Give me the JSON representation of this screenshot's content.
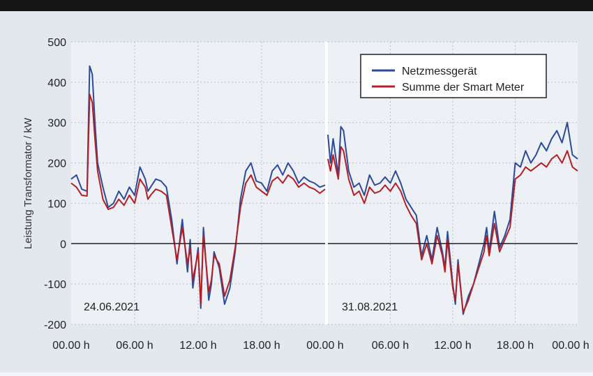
{
  "colors": {
    "background": "#e3e8ef",
    "plot_background": "#edf0f5",
    "zero_line": "#222222",
    "grid": "#b9c0c9",
    "netz": "#2b4a9a",
    "smart": "#b51f24"
  },
  "chart_data": [
    {
      "type": "line",
      "panel_label": "24.06.2021",
      "ylabel": "Leistung Transformator / kW",
      "ylim": [
        -200,
        500
      ],
      "yticks": [
        "500",
        "400",
        "300",
        "200",
        "100",
        "0",
        "-100",
        "-200"
      ],
      "xticks": [
        "00.00 h",
        "06.00 h",
        "12.00 h",
        "18.00 h",
        "00.00 h"
      ],
      "x_unit": "h",
      "xlim": [
        0,
        24
      ],
      "series": [
        {
          "name": "Netzmessgerät",
          "x": [
            0,
            0.5,
            1,
            1.5,
            1.75,
            2,
            2.25,
            2.5,
            3,
            3.5,
            4,
            4.5,
            5,
            5.5,
            6,
            6.5,
            7,
            7.25,
            7.5,
            8,
            8.5,
            9,
            9.5,
            10,
            10.5,
            11,
            11.25,
            11.5,
            12,
            12.25,
            12.5,
            13,
            13.25,
            13.5,
            14,
            14.5,
            15,
            15.5,
            16,
            16.5,
            17,
            17.5,
            18,
            18.5,
            19,
            19.5,
            20,
            20.5,
            21,
            21.5,
            22,
            22.5,
            23,
            23.5,
            24
          ],
          "y": [
            160,
            170,
            135,
            130,
            440,
            420,
            300,
            200,
            140,
            90,
            100,
            130,
            110,
            140,
            120,
            190,
            160,
            130,
            140,
            160,
            155,
            140,
            60,
            -50,
            60,
            -70,
            10,
            -110,
            -10,
            -160,
            40,
            -140,
            -100,
            -20,
            -60,
            -150,
            -110,
            -20,
            110,
            180,
            200,
            155,
            150,
            130,
            180,
            195,
            170,
            200,
            180,
            150,
            165,
            155,
            150,
            140,
            145
          ]
        },
        {
          "name": "Summe der Smart Meter",
          "x": [
            0,
            0.5,
            1,
            1.5,
            1.75,
            2,
            2.25,
            2.5,
            3,
            3.5,
            4,
            4.5,
            5,
            5.5,
            6,
            6.5,
            7,
            7.25,
            7.5,
            8,
            8.5,
            9,
            9.5,
            10,
            10.5,
            11,
            11.25,
            11.5,
            12,
            12.25,
            12.5,
            13,
            13.25,
            13.5,
            14,
            14.5,
            15,
            15.5,
            16,
            16.5,
            17,
            17.5,
            18,
            18.5,
            19,
            19.5,
            20,
            20.5,
            21,
            21.5,
            22,
            22.5,
            23,
            23.5,
            24
          ],
          "y": [
            150,
            140,
            120,
            118,
            370,
            350,
            260,
            180,
            110,
            85,
            90,
            110,
            95,
            120,
            100,
            160,
            140,
            110,
            120,
            135,
            130,
            120,
            40,
            -40,
            40,
            -50,
            -10,
            -90,
            -20,
            -150,
            20,
            -120,
            -90,
            -30,
            -50,
            -130,
            -90,
            -10,
            90,
            150,
            170,
            140,
            130,
            120,
            155,
            165,
            150,
            170,
            160,
            140,
            150,
            140,
            135,
            125,
            135
          ]
        }
      ]
    },
    {
      "type": "line",
      "panel_label": "31.08.2021",
      "ylim": [
        -200,
        500
      ],
      "xticks": [
        "00.00 h",
        "06.00 h",
        "12.00 h",
        "18.00 h",
        "00.00 h"
      ],
      "x_unit": "h",
      "xlim": [
        0,
        24
      ],
      "series": [
        {
          "name": "Netzmessgerät",
          "x": [
            0,
            0.25,
            0.5,
            1,
            1.25,
            1.5,
            2,
            2.5,
            3,
            3.5,
            4,
            4.5,
            5,
            5.5,
            6,
            6.5,
            7,
            7.5,
            8,
            8.5,
            9,
            9.5,
            10,
            10.5,
            11,
            11.25,
            11.5,
            12,
            12.25,
            12.5,
            13,
            13.5,
            14,
            14.5,
            15,
            15.25,
            15.5,
            16,
            16.5,
            17,
            17.5,
            18,
            18.5,
            19,
            19.5,
            20,
            20.5,
            21,
            21.5,
            22,
            22.5,
            23,
            23.5,
            24
          ],
          "y": [
            270,
            200,
            260,
            170,
            290,
            280,
            180,
            140,
            150,
            120,
            170,
            145,
            150,
            165,
            150,
            180,
            150,
            110,
            90,
            70,
            -30,
            20,
            -40,
            40,
            -20,
            -60,
            30,
            -100,
            -150,
            -40,
            -175,
            -130,
            -100,
            -50,
            0,
            40,
            -20,
            80,
            -10,
            20,
            60,
            200,
            190,
            230,
            200,
            220,
            250,
            230,
            260,
            280,
            250,
            300,
            220,
            210
          ]
        },
        {
          "name": "Summe der Smart Meter",
          "x": [
            0,
            0.25,
            0.5,
            1,
            1.25,
            1.5,
            2,
            2.5,
            3,
            3.5,
            4,
            4.5,
            5,
            5.5,
            6,
            6.5,
            7,
            7.5,
            8,
            8.5,
            9,
            9.5,
            10,
            10.5,
            11,
            11.25,
            11.5,
            12,
            12.25,
            12.5,
            13,
            13.5,
            14,
            14.5,
            15,
            15.25,
            15.5,
            16,
            16.5,
            17,
            17.5,
            18,
            18.5,
            19,
            19.5,
            20,
            20.5,
            21,
            21.5,
            22,
            22.5,
            23,
            23.5,
            24
          ],
          "y": [
            210,
            180,
            220,
            160,
            240,
            230,
            160,
            120,
            130,
            100,
            140,
            125,
            130,
            145,
            130,
            150,
            130,
            95,
            70,
            50,
            -40,
            0,
            -50,
            20,
            -30,
            -70,
            10,
            -110,
            -140,
            -50,
            -170,
            -140,
            -100,
            -60,
            -20,
            20,
            -30,
            50,
            -20,
            10,
            40,
            160,
            170,
            190,
            180,
            190,
            200,
            190,
            210,
            220,
            200,
            230,
            190,
            180
          ]
        }
      ]
    }
  ],
  "legend": {
    "items": [
      "Netzmessgerät",
      "Summe der Smart Meter"
    ]
  }
}
